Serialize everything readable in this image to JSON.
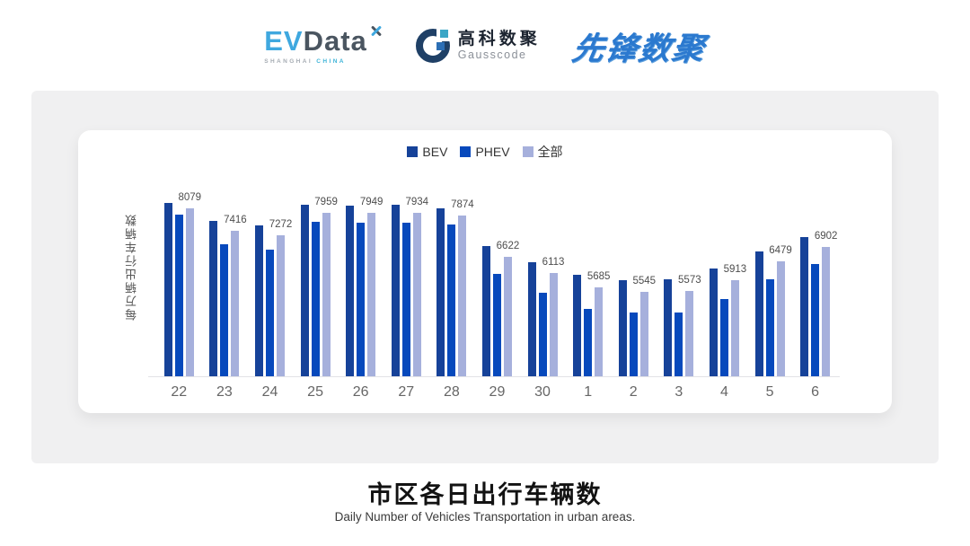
{
  "header": {
    "evdata": {
      "ev": "EV",
      "data": "Data",
      "sub1": "SHANGHAI",
      "sub2": "CHINA"
    },
    "gausscode": {
      "cn": "高科数聚",
      "en": "Gausscode"
    },
    "pioneer": {
      "text": "先锋数聚"
    }
  },
  "chart_data": {
    "type": "bar",
    "title": "市区各日出行车辆数",
    "subtitle": "Daily Number of Vehicles Transportation in urban areas.",
    "ylabel": "每万辆出行车辆数",
    "xlabel": "",
    "categories": [
      "22",
      "23",
      "24",
      "25",
      "26",
      "27",
      "28",
      "29",
      "30",
      "1",
      "2",
      "3",
      "4",
      "5",
      "6"
    ],
    "series": [
      {
        "key": "bev",
        "name": "BEV",
        "color": "#164299",
        "values": [
          8240,
          7700,
          7560,
          8180,
          8160,
          8180,
          8070,
          6950,
          6450,
          6070,
          5910,
          5930,
          6250,
          6790,
          7210
        ]
      },
      {
        "key": "phev",
        "name": "PHEV",
        "color": "#0749BC",
        "values": [
          7890,
          7000,
          6820,
          7680,
          7650,
          7640,
          7590,
          6110,
          5530,
          5050,
          4940,
          4940,
          5340,
          5930,
          6390
        ]
      },
      {
        "key": "all",
        "name": "全部",
        "color": "#A6B0DC",
        "values": [
          8079,
          7416,
          7272,
          7959,
          7949,
          7934,
          7874,
          6622,
          6113,
          5685,
          5545,
          5573,
          5913,
          6479,
          6902
        ]
      }
    ],
    "value_labels": [
      8079,
      7416,
      7272,
      7959,
      7949,
      7934,
      7874,
      6622,
      6113,
      5685,
      5545,
      5573,
      5913,
      6479,
      6902
    ],
    "value_label_series": "全部",
    "ylim": [
      3000,
      8600
    ],
    "grid": false,
    "legend_position": "top"
  },
  "footer": {
    "title": "市区各日出行车辆数",
    "subtitle": "Daily Number of Vehicles Transportation in urban areas."
  }
}
